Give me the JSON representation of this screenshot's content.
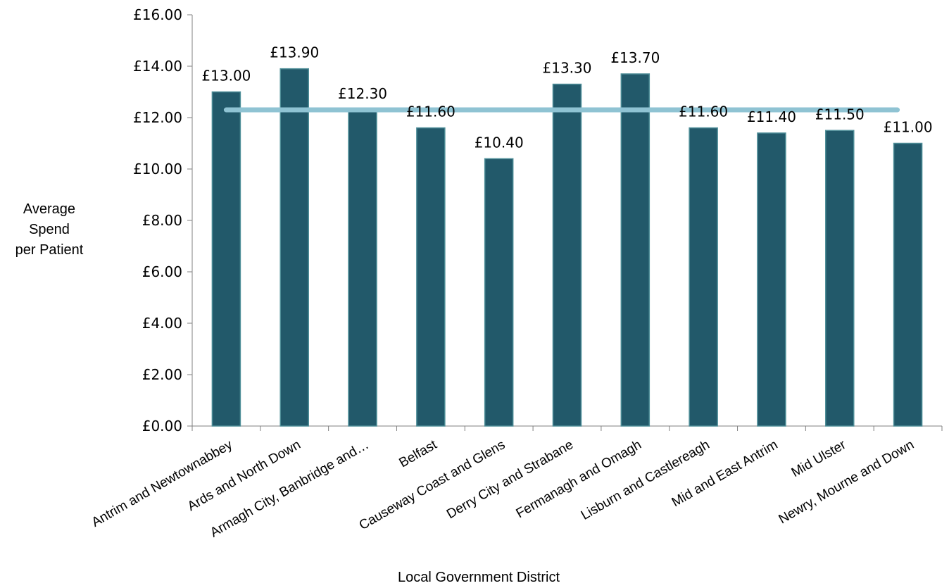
{
  "chart_data": {
    "type": "bar",
    "categories": [
      "Antrim and Newtownabbey",
      "Ards and North Down",
      "Armagh City, Banbridge and…",
      "Belfast",
      "Causeway Coast and Glens",
      "Derry City and Strabane",
      "Fermanagh and Omagh",
      "Lisburn and Castlereagh",
      "Mid and East Antrim",
      "Mid Ulster",
      "Newry, Mourne and Down"
    ],
    "values": [
      13.0,
      13.9,
      12.3,
      11.6,
      10.4,
      13.3,
      13.7,
      11.6,
      11.4,
      11.5,
      11.0
    ],
    "data_labels": [
      "£13.00",
      "£13.90",
      "£12.30",
      "£11.60",
      "£10.40",
      "£13.30",
      "£13.70",
      "£11.60",
      "£11.40",
      "£11.50",
      "£11.00"
    ],
    "reference_line_value": 12.3,
    "title": "",
    "xlabel": "Local Government District",
    "ylabel_lines": [
      "Average",
      "Spend",
      "per Patient"
    ],
    "ylim": [
      0,
      16
    ],
    "yticks": [
      0,
      2,
      4,
      6,
      8,
      10,
      12,
      14,
      16
    ],
    "ytick_labels": [
      "£0.00",
      "£2.00",
      "£4.00",
      "£6.00",
      "£8.00",
      "£10.00",
      "£12.00",
      "£14.00",
      "£16.00"
    ],
    "grid": false,
    "legend": "none",
    "colors": {
      "bar_fill": "#22596A",
      "bar_stroke": "#4E8E98",
      "reference_line": "#8FC3D3",
      "axis": "#808080"
    }
  }
}
